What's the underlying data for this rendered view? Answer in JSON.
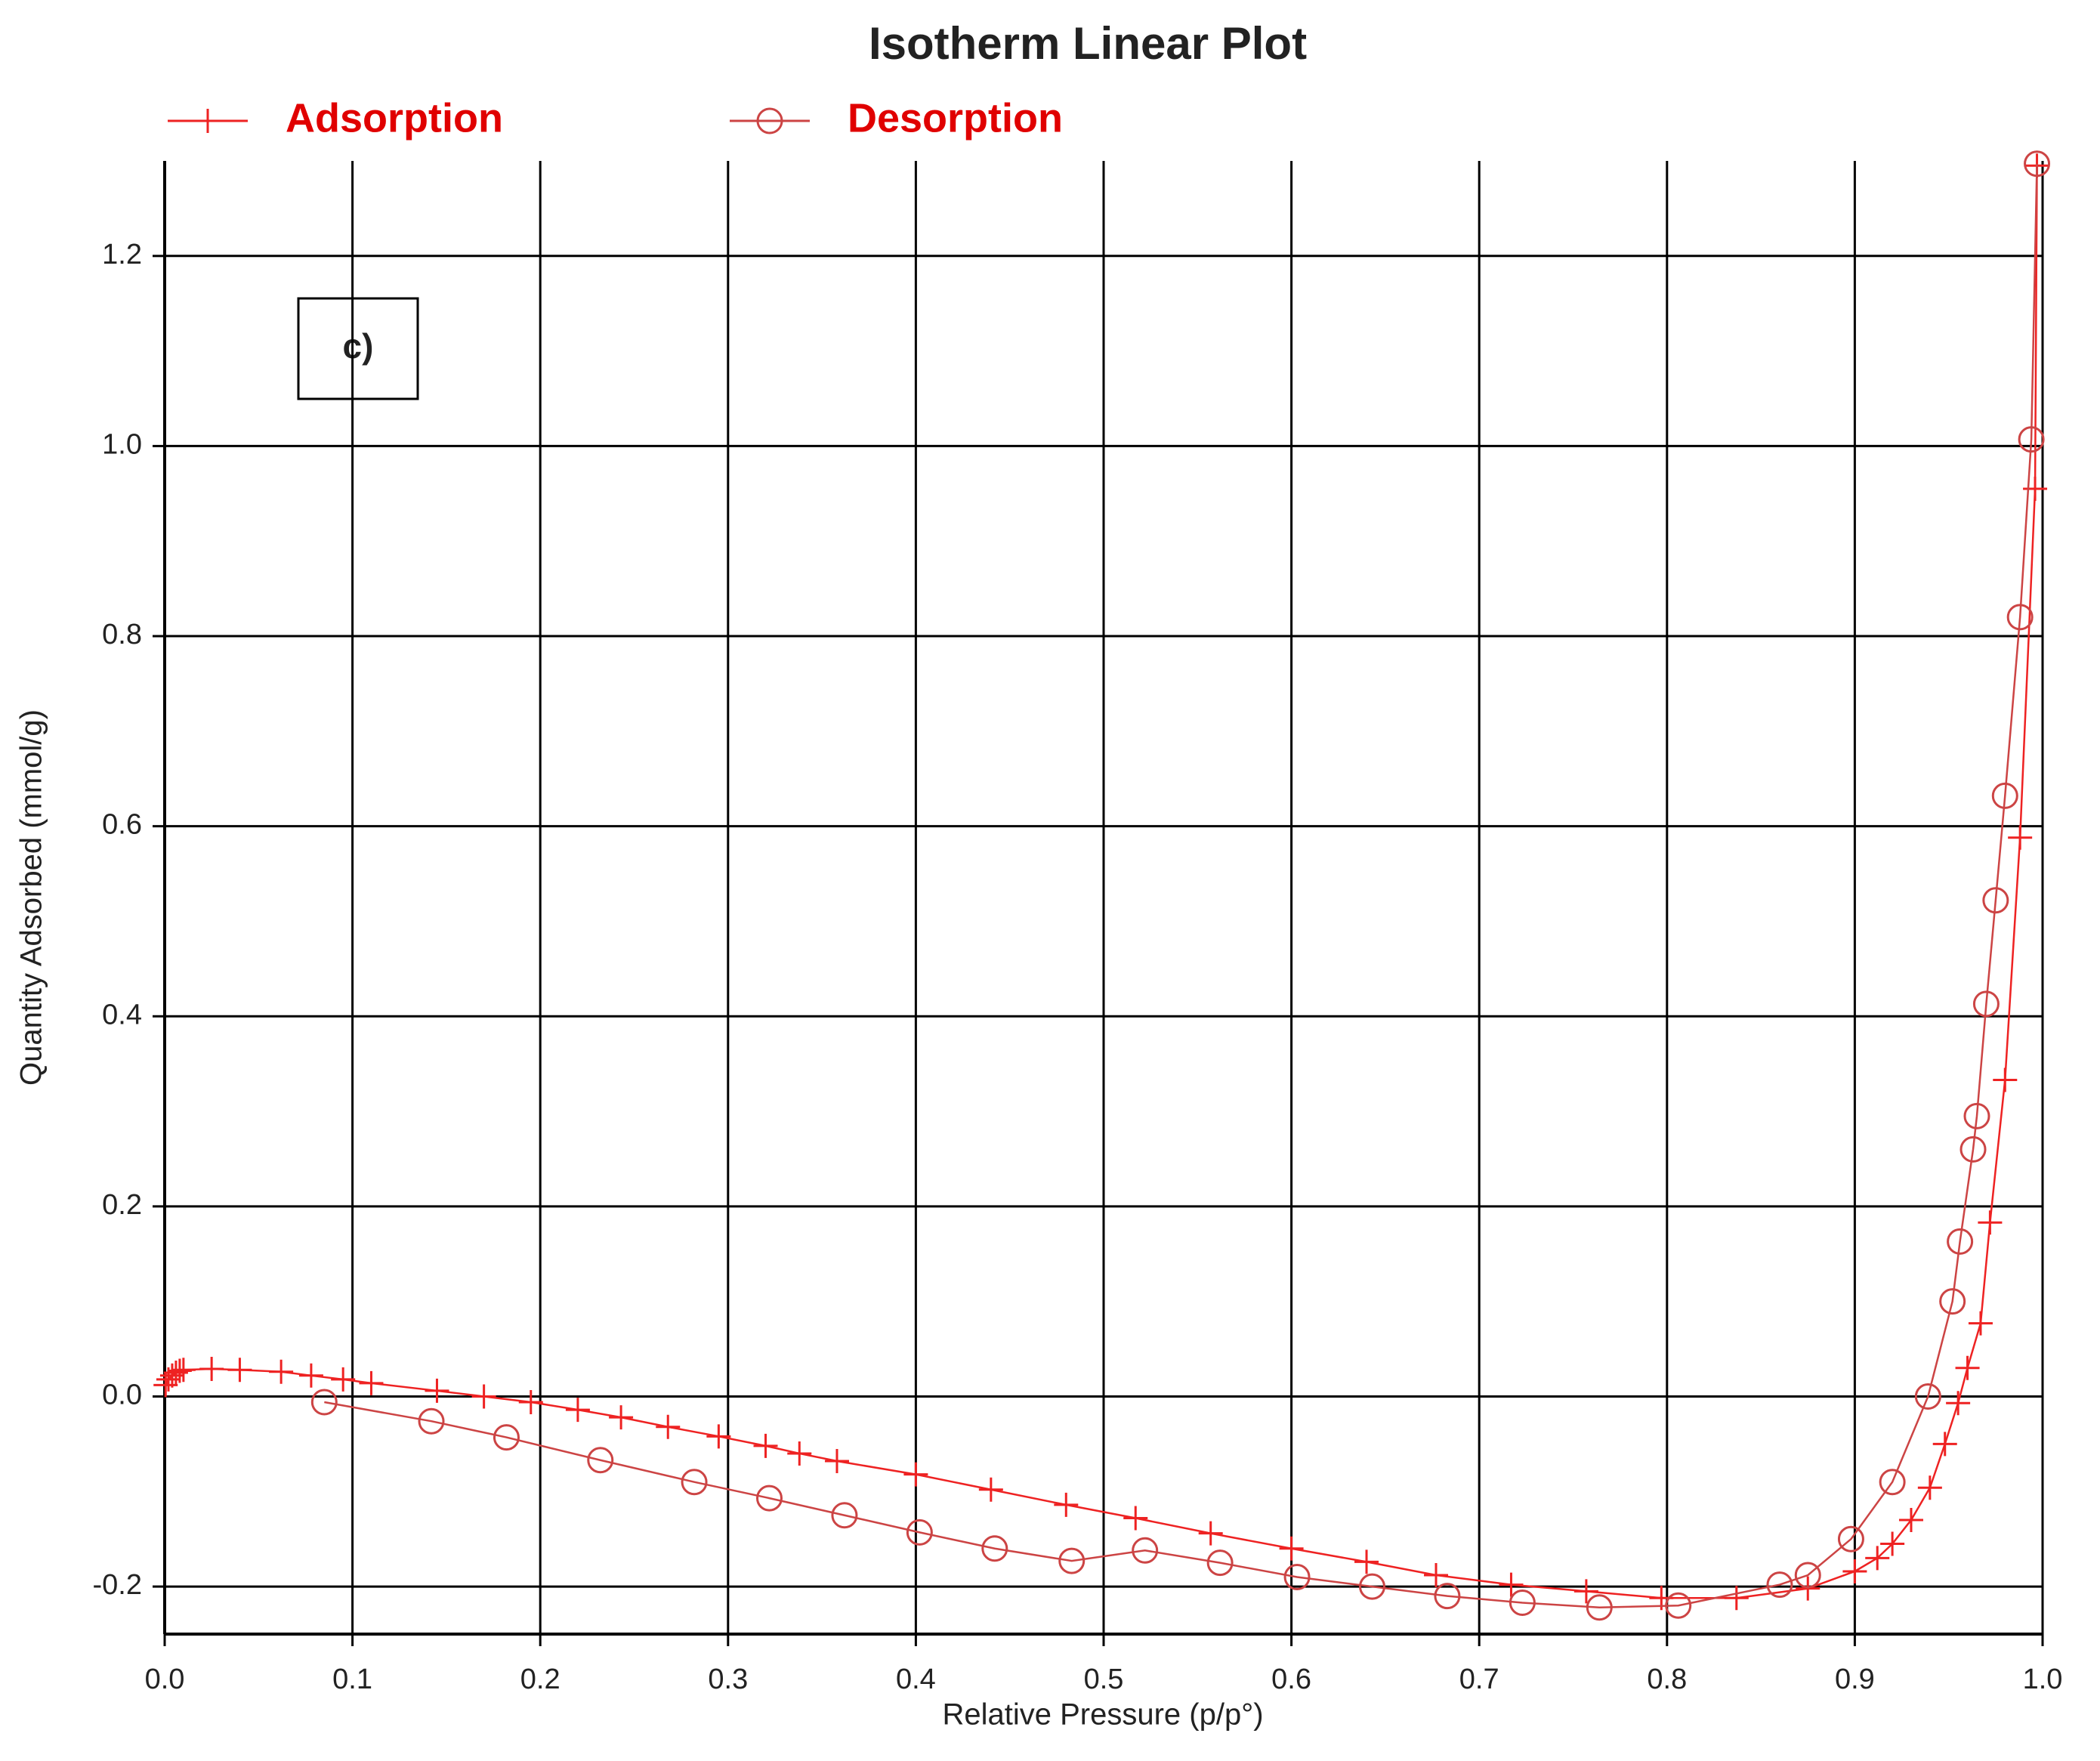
{
  "chart_data": {
    "type": "line",
    "title": "Isotherm Linear Plot",
    "annotation": "c)",
    "x_label": "Relative Pressure (p/p°)",
    "y_label": "Quantity Adsorbed (mmol/g)",
    "xlim": [
      0,
      1
    ],
    "ylim": [
      -0.25,
      1.3
    ],
    "xticks": [
      {
        "value": 0,
        "label": "0.0"
      },
      0.1,
      0.2,
      0.3,
      0.4,
      0.5,
      0.6,
      0.7,
      0.8,
      0.9,
      {
        "value": 1,
        "label": "1.0"
      }
    ],
    "yticks": [
      -0.2,
      {
        "value": 0,
        "label": "0.0"
      },
      0.2,
      0.4,
      0.6,
      0.8,
      {
        "value": 1,
        "label": "1.0"
      },
      1.2
    ],
    "grid": true,
    "legend": "top",
    "series": [
      {
        "name": "Adsorption",
        "color": "#ee2222",
        "marker": "plus",
        "x": [
          0.0005,
          0.002,
          0.004,
          0.006,
          0.008,
          0.01,
          0.025,
          0.04,
          0.062,
          0.078,
          0.095,
          0.11,
          0.145,
          0.17,
          0.195,
          0.22,
          0.243,
          0.268,
          0.295,
          0.32,
          0.338,
          0.358,
          0.4,
          0.44,
          0.48,
          0.517,
          0.557,
          0.6,
          0.64,
          0.677,
          0.717,
          0.757,
          0.797,
          0.837,
          0.875,
          0.9,
          0.912,
          0.92,
          0.93,
          0.94,
          0.948,
          0.955,
          0.96,
          0.967,
          0.972,
          0.98,
          0.988,
          0.996,
          0.997
        ],
        "values": [
          0.012,
          0.018,
          0.022,
          0.025,
          0.027,
          0.028,
          0.029,
          0.028,
          0.026,
          0.022,
          0.018,
          0.014,
          0.006,
          0.0,
          -0.006,
          -0.014,
          -0.022,
          -0.032,
          -0.042,
          -0.052,
          -0.06,
          -0.068,
          -0.082,
          -0.098,
          -0.114,
          -0.128,
          -0.144,
          -0.16,
          -0.174,
          -0.188,
          -0.198,
          -0.205,
          -0.212,
          -0.212,
          -0.202,
          -0.184,
          -0.17,
          -0.155,
          -0.13,
          -0.096,
          -0.05,
          -0.007,
          0.03,
          0.077,
          0.183,
          0.333,
          0.588,
          0.955,
          1.295
        ]
      },
      {
        "name": "Desorption",
        "color": "#cc4444",
        "marker": "circle",
        "x": [
          0.997,
          0.994,
          0.988,
          0.98,
          0.975,
          0.97,
          0.965,
          0.963,
          0.956,
          0.952,
          0.939,
          0.92,
          0.898,
          0.875,
          0.86,
          0.806,
          0.764,
          0.723,
          0.683,
          0.643,
          0.603,
          0.562,
          0.522,
          0.483,
          0.442,
          0.402,
          0.362,
          0.322,
          0.282,
          0.232,
          0.182,
          0.142,
          0.085
        ],
        "values": [
          1.297,
          1.007,
          0.82,
          0.632,
          0.522,
          0.413,
          0.295,
          0.26,
          0.163,
          0.1,
          0.0,
          -0.09,
          -0.15,
          -0.188,
          -0.198,
          -0.22,
          -0.222,
          -0.217,
          -0.21,
          -0.2,
          -0.19,
          -0.175,
          -0.162,
          -0.173,
          -0.16,
          -0.143,
          -0.125,
          -0.107,
          -0.09,
          -0.067,
          -0.043,
          -0.026,
          -0.006
        ]
      }
    ]
  }
}
